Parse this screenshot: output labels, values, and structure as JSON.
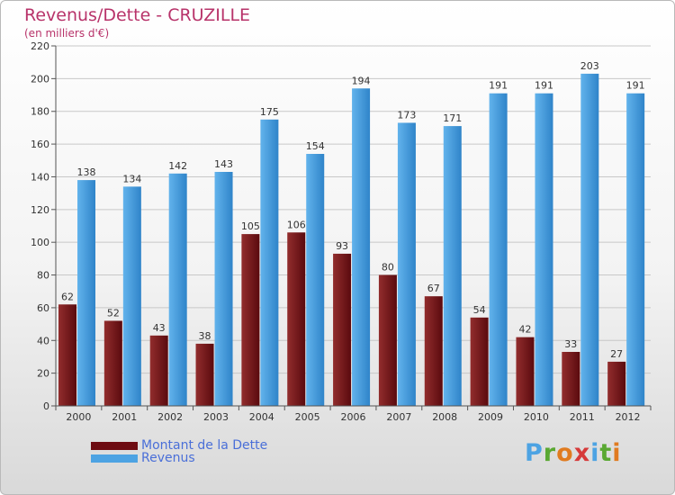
{
  "header": {
    "title": "Revenus/Dette - CRUZILLE",
    "subtitle": "(en milliers d'€)"
  },
  "legend": [
    {
      "label": "Montant de la Dette",
      "color": "#6e0c12"
    },
    {
      "label": "Revenus",
      "color": "#4da3e3"
    }
  ],
  "logo": {
    "text": "Proxiti",
    "letter_colors": [
      "#4da3e3",
      "#5aa832",
      "#e07b20",
      "#d63a3a",
      "#4da3e3",
      "#5aa832",
      "#e07b20"
    ]
  },
  "colors": {
    "debt": "#6e0c12",
    "debt_light": "#922d2d",
    "revenue": "#4da3e3",
    "revenue_dark": "#2f84c9",
    "title": "#b8336a",
    "grid": "#c8c8c8"
  },
  "chart_data": {
    "type": "bar",
    "title": "Revenus/Dette - CRUZILLE",
    "subtitle": "(en milliers d'€)",
    "xlabel": "",
    "ylabel": "",
    "categories": [
      "2000",
      "2001",
      "2002",
      "2003",
      "2004",
      "2005",
      "2006",
      "2007",
      "2008",
      "2009",
      "2010",
      "2011",
      "2012"
    ],
    "series": [
      {
        "name": "Montant de la Dette",
        "values": [
          62,
          52,
          43,
          38,
          105,
          106,
          93,
          80,
          67,
          54,
          42,
          33,
          27
        ]
      },
      {
        "name": "Revenus",
        "values": [
          138,
          134,
          142,
          143,
          175,
          154,
          194,
          173,
          171,
          191,
          191,
          203,
          191
        ]
      }
    ],
    "ylim": [
      0,
      220
    ],
    "yticks": [
      0,
      20,
      40,
      60,
      80,
      100,
      120,
      140,
      160,
      180,
      200,
      220
    ],
    "grid": true,
    "legend_position": "bottom-left"
  }
}
